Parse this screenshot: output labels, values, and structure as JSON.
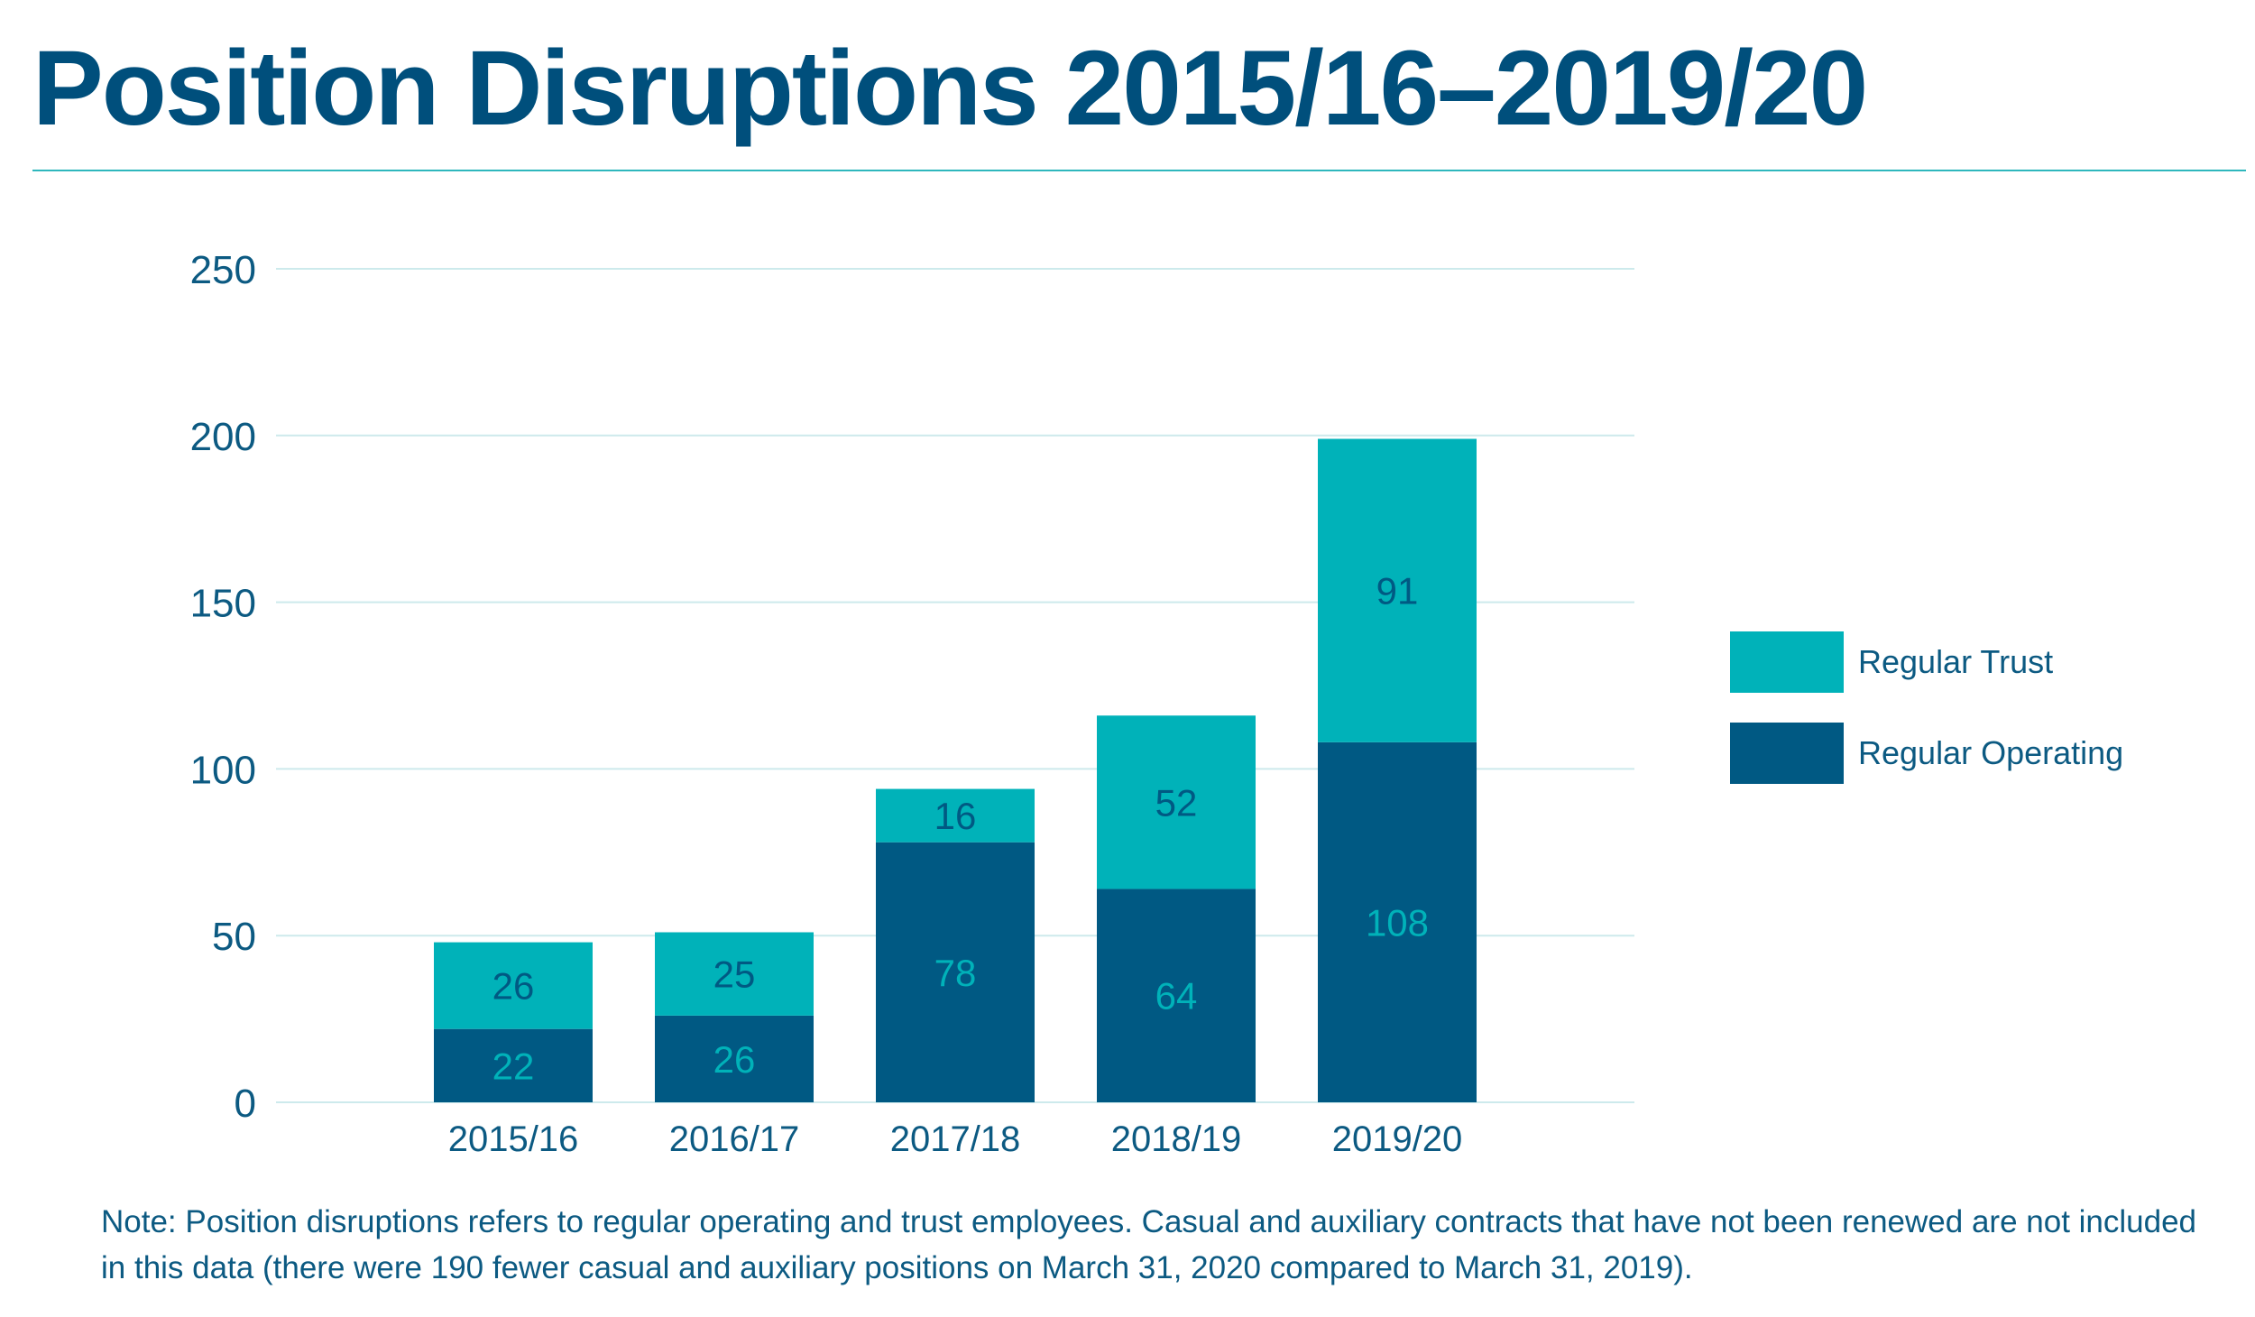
{
  "title": "Position Disruptions 2015/16–2019/20",
  "note": "Note: Position disruptions refers to regular operating and trust employees. Casual and auxiliary contracts that have not been renewed are not included in this data (there were 190 fewer casual and auxiliary positions on March 31, 2020 compared to March 31, 2019).",
  "colors": {
    "title": "#004f7c",
    "regular_trust": "#00b2b9",
    "regular_operating": "#005983",
    "gridline": "#cdeaec",
    "axis_text": "#0c5a82"
  },
  "chart_data": {
    "type": "bar",
    "stacked": true,
    "title": "",
    "xlabel": "",
    "ylabel": "",
    "categories": [
      "2015/16",
      "2016/17",
      "2017/18",
      "2018/19",
      "2019/20"
    ],
    "series": [
      {
        "name": "Regular Operating",
        "values": [
          22,
          26,
          78,
          64,
          108
        ],
        "color": "#005983",
        "label_color": "#00b2b9"
      },
      {
        "name": "Regular Trust",
        "values": [
          26,
          25,
          16,
          52,
          91
        ],
        "color": "#00b2b9",
        "label_color": "#005983"
      }
    ],
    "yticks": [
      0,
      50,
      100,
      150,
      200,
      250
    ],
    "ylim": [
      0,
      250
    ],
    "grid": true,
    "legend": {
      "placement": "right",
      "order": [
        "Regular Trust",
        "Regular Operating"
      ]
    }
  }
}
